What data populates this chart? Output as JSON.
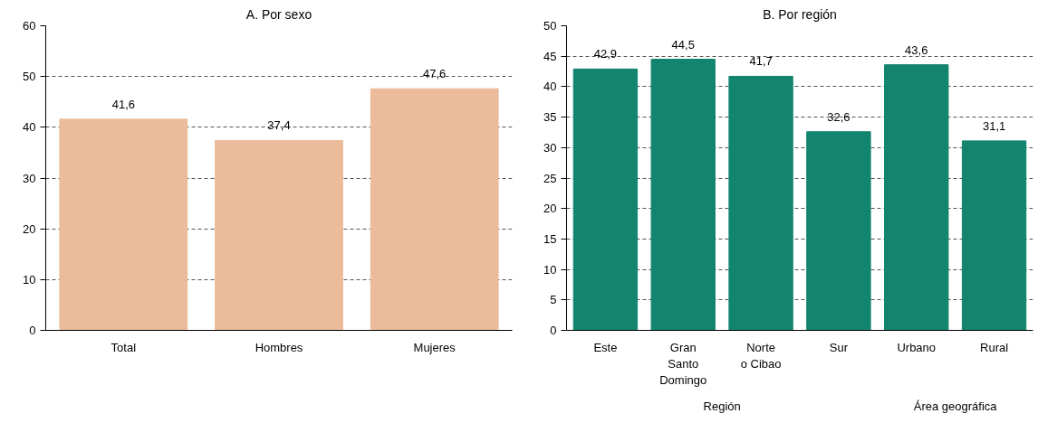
{
  "chart_data": [
    {
      "type": "bar",
      "title": "A. Por sexo",
      "categories": [
        "Total",
        "Hombres",
        "Mujeres"
      ],
      "values": [
        41.6,
        37.4,
        47.6
      ],
      "color": "#ecbb9b",
      "ylim": [
        0,
        60
      ],
      "yticks": [
        0,
        10,
        20,
        30,
        40,
        50,
        60
      ],
      "grid": "y",
      "data_labels": true,
      "value_labels": [
        "41,6",
        "37,4",
        "47,6"
      ]
    },
    {
      "type": "bar",
      "title": "B. Por región",
      "categories": [
        "Este",
        "Gran\nSanto\nDomingo",
        "Norte\no Cibao",
        "Sur",
        "Urbano",
        "Rural"
      ],
      "values": [
        42.9,
        44.5,
        41.7,
        32.6,
        43.6,
        31.1
      ],
      "color": "#13846d",
      "ylim": [
        0,
        50
      ],
      "yticks": [
        0,
        5,
        10,
        15,
        20,
        25,
        30,
        35,
        40,
        45,
        50
      ],
      "grid": "y",
      "data_labels": true,
      "value_labels": [
        "42,9",
        "44,5",
        "41,7",
        "32,6",
        "43,6",
        "31,1"
      ],
      "annotations": [
        "Región",
        "Área geográfica"
      ]
    }
  ]
}
